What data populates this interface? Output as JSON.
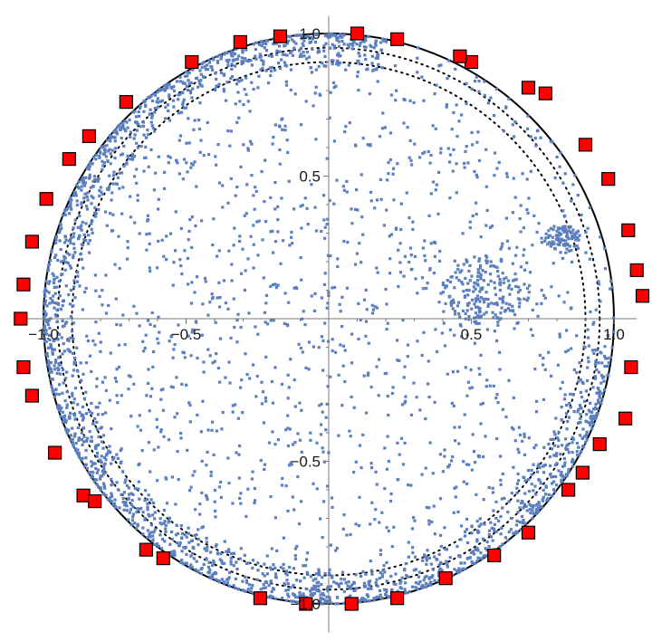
{
  "chart_data": {
    "type": "scatter",
    "title": "",
    "xlabel": "",
    "ylabel": "",
    "xlim": [
      -1.08,
      1.08
    ],
    "ylim": [
      -1.1,
      1.06
    ],
    "aspect_equal": true,
    "axes_origin": [
      0,
      0
    ],
    "x_ticks": [
      {
        "value": -1.0,
        "label": "−1.0"
      },
      {
        "value": -0.5,
        "label": "−0.5"
      },
      {
        "value": 0.5,
        "label": "0.5"
      },
      {
        "value": 1.0,
        "label": "1.0"
      }
    ],
    "y_ticks": [
      {
        "value": 1.0,
        "label": "1.0"
      },
      {
        "value": 0.5,
        "label": "0.5"
      },
      {
        "value": -0.5,
        "label": "−0.5"
      },
      {
        "value": -1.0,
        "label": "−1.0"
      }
    ],
    "grid": false,
    "reference_curves": [
      {
        "kind": "circle",
        "radius": 1.0,
        "style": "solid",
        "color": "#000000"
      },
      {
        "kind": "circle",
        "radius": 0.9,
        "style": "dotted",
        "color": "#000000"
      },
      {
        "kind": "circle",
        "radius": 0.95,
        "style": "dotted",
        "color": "#000000"
      }
    ],
    "series": [
      {
        "marker": "square",
        "color": "#ff0000",
        "edge_color": "#000000",
        "points": [
          [
            0.1,
            1.0
          ],
          [
            0.24,
            0.98
          ],
          [
            -0.17,
            0.99
          ],
          [
            -0.31,
            0.97
          ],
          [
            -0.48,
            0.9
          ],
          [
            -0.71,
            0.76
          ],
          [
            -0.84,
            0.64
          ],
          [
            -0.91,
            0.56
          ],
          [
            -0.99,
            0.42
          ],
          [
            -1.04,
            0.27
          ],
          [
            -1.07,
            0.12
          ],
          [
            -1.08,
            0.0
          ],
          [
            -1.07,
            -0.17
          ],
          [
            -1.04,
            -0.27
          ],
          [
            -0.96,
            -0.47
          ],
          [
            -0.86,
            -0.62
          ],
          [
            -0.82,
            -0.64
          ],
          [
            -0.64,
            -0.81
          ],
          [
            -0.58,
            -0.84
          ],
          [
            -0.24,
            -0.98
          ],
          [
            -0.08,
            -1.0
          ],
          [
            0.08,
            -1.0
          ],
          [
            0.24,
            -0.98
          ],
          [
            0.41,
            -0.91
          ],
          [
            0.58,
            -0.83
          ],
          [
            0.7,
            -0.75
          ],
          [
            0.84,
            -0.6
          ],
          [
            0.89,
            -0.54
          ],
          [
            0.95,
            -0.44
          ],
          [
            1.04,
            -0.35
          ],
          [
            1.06,
            -0.17
          ],
          [
            1.1,
            0.08
          ],
          [
            1.08,
            0.17
          ],
          [
            1.05,
            0.31
          ],
          [
            0.98,
            0.49
          ],
          [
            0.9,
            0.61
          ],
          [
            0.76,
            0.79
          ],
          [
            0.7,
            0.81
          ],
          [
            0.5,
            0.9
          ],
          [
            0.46,
            0.92
          ]
        ]
      },
      {
        "marker": "dot",
        "color": "#5b7fbf",
        "description_clusters": [
          {
            "region": "dense ring near unit circle",
            "r_range": [
              0.88,
              1.0
            ],
            "n": 2600
          },
          {
            "region": "sparse interior",
            "r_range": [
              0.0,
              0.88
            ],
            "n": 1200
          },
          {
            "region": "cluster near (0.55, 0.1)",
            "center": [
              0.55,
              0.1
            ],
            "spread": 0.12,
            "n": 180
          },
          {
            "region": "arc near (0.8, 0.28)",
            "center": [
              0.82,
              0.28
            ],
            "spread": 0.05,
            "n": 90
          }
        ]
      }
    ]
  }
}
